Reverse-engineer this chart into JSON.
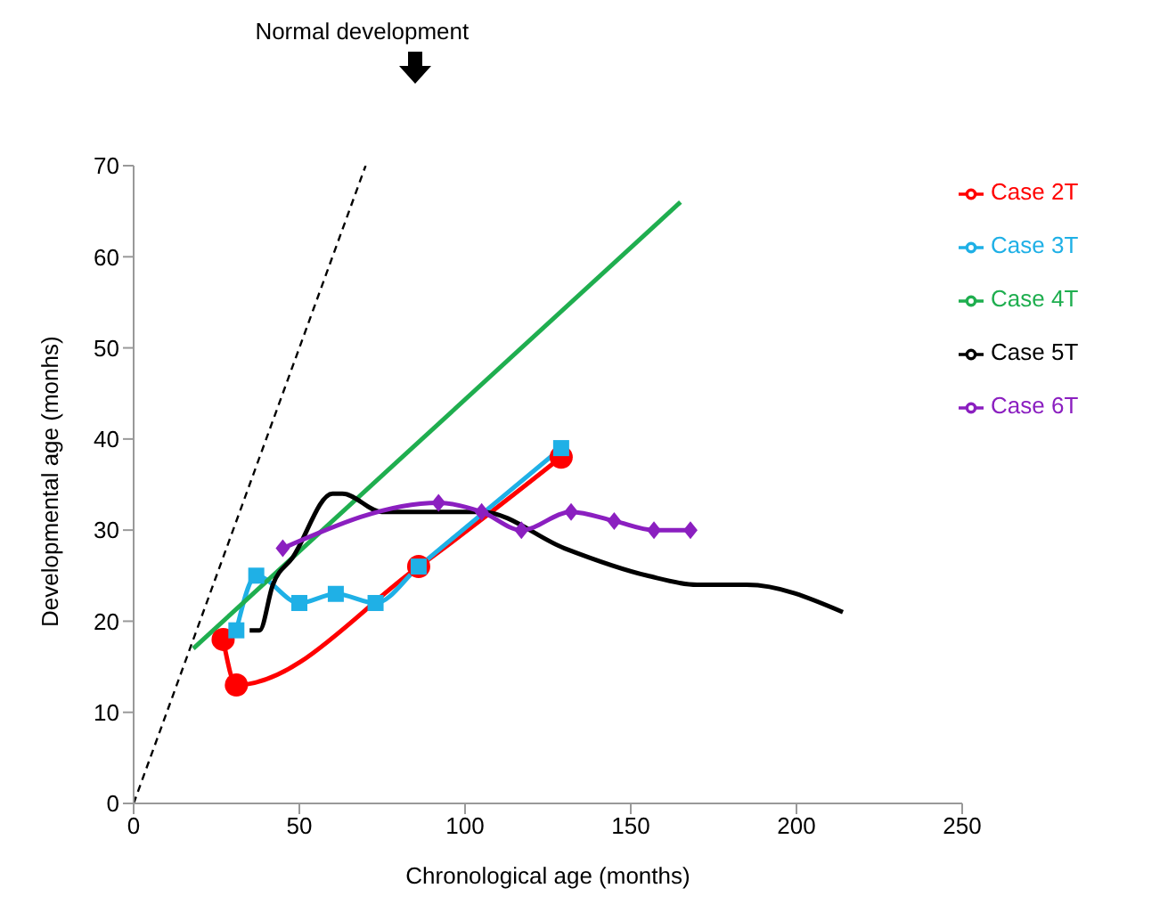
{
  "chart_data": {
    "type": "line",
    "xlabel": "Chronological age (months)",
    "ylabel": "Developmental age (monhs)",
    "xlim": [
      0,
      250
    ],
    "xticks": [
      0,
      50,
      100,
      150,
      200,
      250
    ],
    "ylim": [
      0,
      70
    ],
    "yticks": [
      0,
      10,
      20,
      30,
      40,
      50,
      60,
      70
    ],
    "grid": false,
    "legend": "top right",
    "annotations": [
      "Normal development"
    ],
    "series": [
      {
        "x": [
          0,
          70
        ],
        "values": [
          0,
          70
        ],
        "color": "#000000",
        "line_style": "dashed",
        "marker": "none"
      },
      {
        "name": "Case 2T",
        "color": "#ff0000",
        "marker": "circle",
        "x": [
          27,
          31,
          86,
          129
        ],
        "values": [
          18,
          13,
          26,
          38
        ]
      },
      {
        "name": "Case 3T",
        "color": "#1fb0e6",
        "marker": "square",
        "x": [
          31,
          37,
          50,
          61,
          73,
          86,
          129
        ],
        "values": [
          19,
          25,
          22,
          23,
          22,
          26,
          39
        ]
      },
      {
        "name": "Case 4T",
        "color": "#1fae4f",
        "marker": "none",
        "x": [
          18,
          165
        ],
        "values": [
          17,
          66
        ]
      },
      {
        "name": "Case 5T",
        "color": "#000000",
        "marker": "none",
        "x": [
          35,
          38,
          42,
          48,
          60,
          63,
          75,
          90,
          105,
          130,
          155,
          170,
          185,
          214
        ],
        "values": [
          19,
          19,
          24,
          27,
          34,
          34,
          32,
          32,
          32,
          28,
          25,
          24,
          24,
          21
        ]
      },
      {
        "name": "Case 6T",
        "color": "#8b1fc0",
        "marker": "diamond",
        "x": [
          45,
          92,
          105,
          117,
          132,
          145,
          157,
          168
        ],
        "values": [
          28,
          33,
          32,
          30,
          32,
          31,
          30,
          30
        ]
      }
    ]
  }
}
